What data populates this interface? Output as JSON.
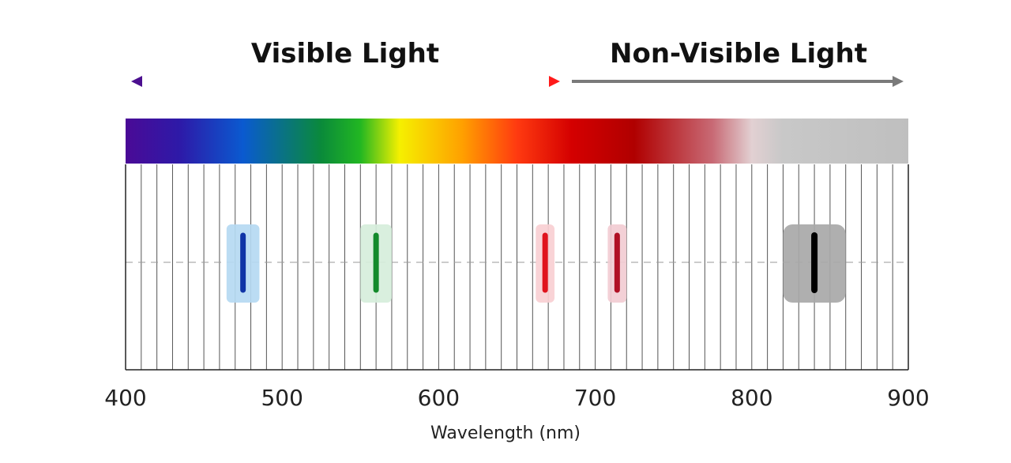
{
  "headings": {
    "visible": "Visible Light",
    "non_visible": "Non-Visible Light"
  },
  "axis": {
    "title": "Wavelength (nm)",
    "range_nm": [
      400,
      900
    ],
    "tick_labels": [
      "400",
      "500",
      "600",
      "700",
      "800",
      "900"
    ],
    "visible_range_nm": [
      400,
      675
    ],
    "non_visible_range_nm": [
      685,
      900
    ]
  },
  "colors": {
    "visible_arrow_start": "#4b0f8f",
    "visible_arrow_end": "#ff1a1a",
    "non_visible_arrow": "#7a7a7a"
  },
  "chart_data": {
    "type": "bar",
    "title": "",
    "xlabel": "Wavelength (nm)",
    "xlim": [
      400,
      900
    ],
    "lines": [
      {
        "x": 475,
        "color": "#1034a6",
        "band_color": "#b5d9f2",
        "band_width_nm": 21
      },
      {
        "x": 560,
        "color": "#138a2b",
        "band_color": "#d6eedb",
        "band_width_nm": 20
      },
      {
        "x": 668,
        "color": "#e0141e",
        "band_color": "#f8cfd2",
        "band_width_nm": 12
      },
      {
        "x": 714,
        "color": "#b01024",
        "band_color": "#f2ccd3",
        "band_width_nm": 12
      },
      {
        "x": 840,
        "color": "#000000",
        "band_color": "#a8a8a8",
        "band_width_nm": 40
      }
    ]
  }
}
